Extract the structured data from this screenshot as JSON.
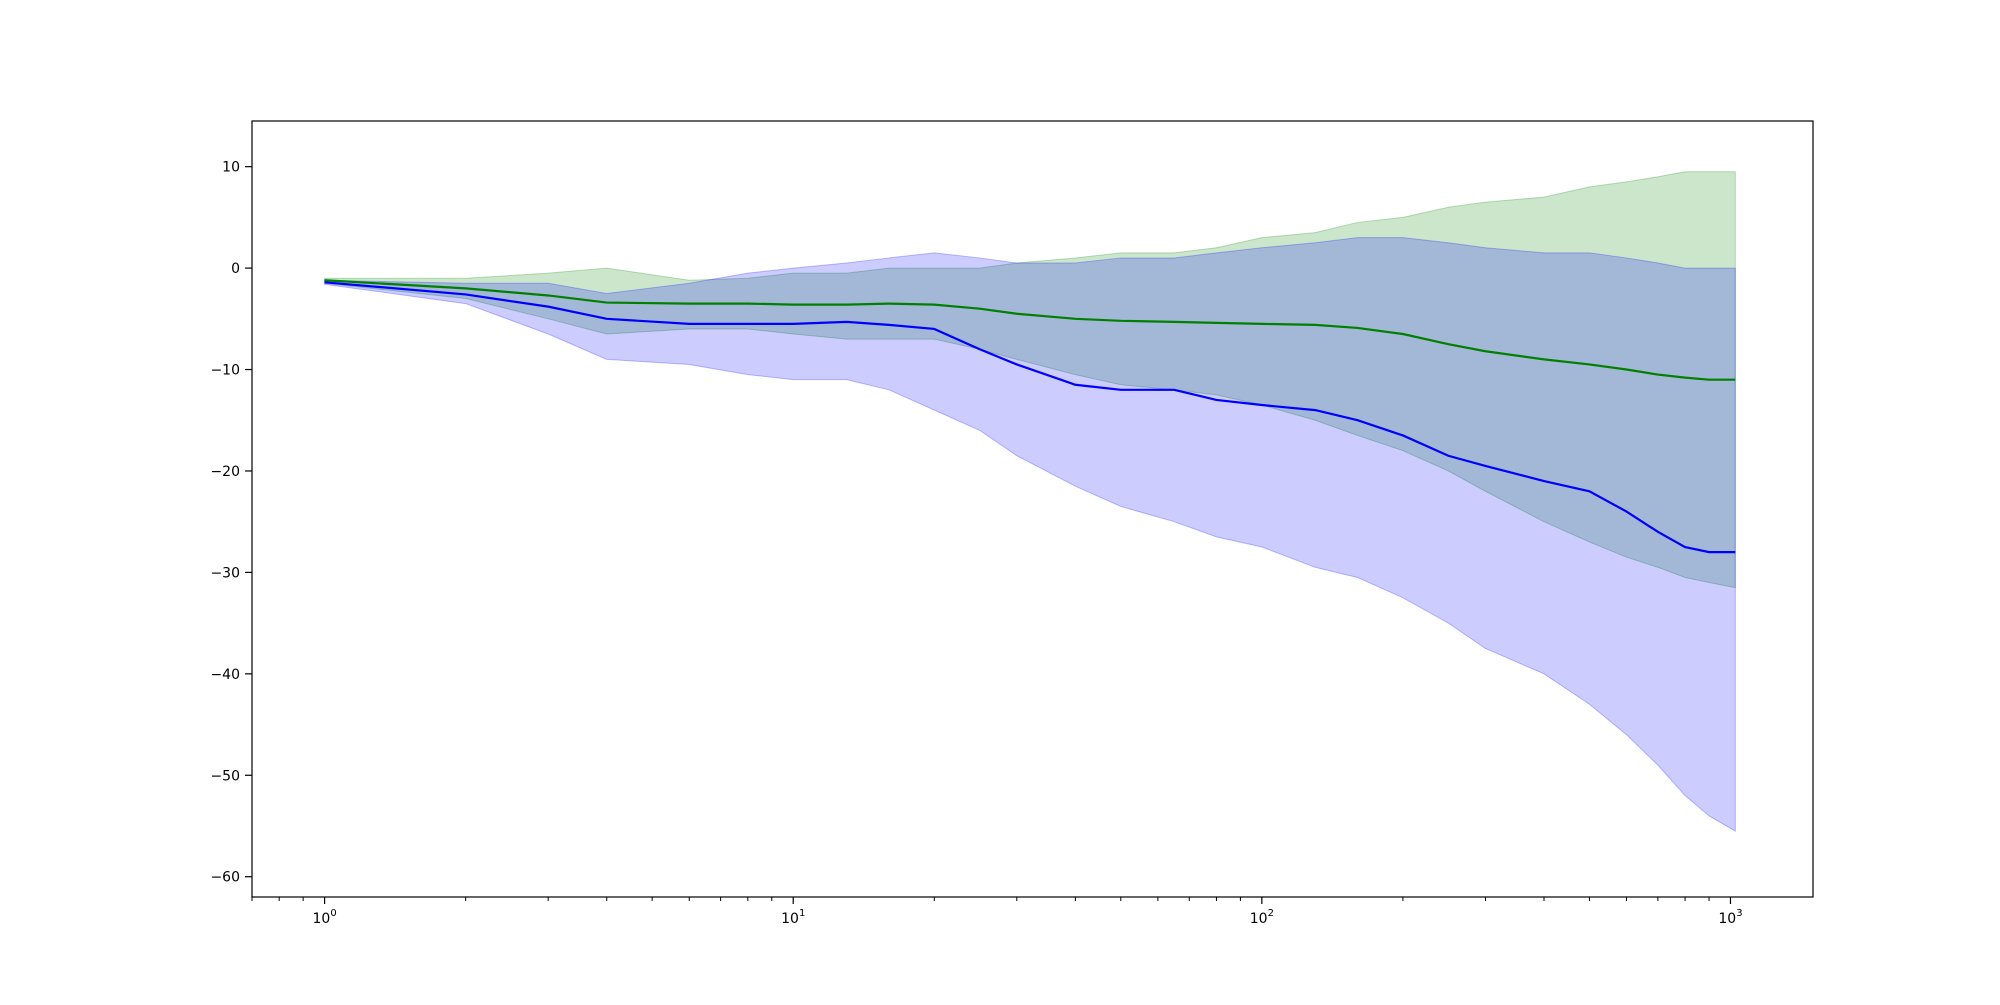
{
  "chart_data": {
    "type": "line",
    "title": "",
    "xlabel": "",
    "ylabel": "",
    "xscale": "log",
    "xlim": [
      0.7,
      1500
    ],
    "ylim": [
      -62,
      14.5
    ],
    "grid": false,
    "legend": "none",
    "x_ticks": [
      {
        "value": 1,
        "base": "10",
        "exp": "0"
      },
      {
        "value": 10,
        "base": "10",
        "exp": "1"
      },
      {
        "value": 100,
        "base": "10",
        "exp": "2"
      },
      {
        "value": 1000,
        "base": "10",
        "exp": "3"
      }
    ],
    "y_ticks": [
      {
        "value": 10,
        "label": "10"
      },
      {
        "value": 0,
        "label": "0"
      },
      {
        "value": -10,
        "label": "−10"
      },
      {
        "value": -20,
        "label": "−20"
      },
      {
        "value": -30,
        "label": "−30"
      },
      {
        "value": -40,
        "label": "−40"
      },
      {
        "value": -50,
        "label": "−50"
      },
      {
        "value": -60,
        "label": "−60"
      }
    ],
    "x": [
      1,
      2,
      3,
      4,
      6,
      8,
      10,
      13,
      16,
      20,
      25,
      30,
      40,
      50,
      65,
      80,
      100,
      130,
      160,
      200,
      250,
      300,
      400,
      500,
      600,
      700,
      800,
      900,
      1024
    ],
    "series": [
      {
        "color": "#008000",
        "band_color": "#008000",
        "band_opacity": 0.2,
        "mean": [
          -1.2,
          -2.0,
          -2.7,
          -3.4,
          -3.5,
          -3.5,
          -3.6,
          -3.6,
          -3.5,
          -3.6,
          -4.0,
          -4.5,
          -5.0,
          -5.2,
          -5.3,
          -5.4,
          -5.5,
          -5.6,
          -5.9,
          -6.5,
          -7.5,
          -8.2,
          -9.0,
          -9.5,
          -10.0,
          -10.5,
          -10.8,
          -11.0,
          -11.0
        ],
        "upper": [
          -1.0,
          -1.0,
          -0.5,
          0.0,
          -1.2,
          -1.0,
          -0.5,
          -0.5,
          0.0,
          0.0,
          0.0,
          0.5,
          1.0,
          1.5,
          1.5,
          2.0,
          3.0,
          3.5,
          4.5,
          5.0,
          6.0,
          6.5,
          7.0,
          8.0,
          8.5,
          9.0,
          9.5,
          9.5,
          9.5
        ],
        "lower": [
          -1.5,
          -3.0,
          -5.0,
          -6.5,
          -6.0,
          -6.0,
          -6.5,
          -7.0,
          -7.0,
          -7.0,
          -8.0,
          -9.0,
          -10.5,
          -11.5,
          -12.0,
          -12.5,
          -13.5,
          -15.0,
          -16.5,
          -18.0,
          -20.0,
          -22.0,
          -25.0,
          -27.0,
          -28.5,
          -29.5,
          -30.5,
          -31.0,
          -31.5
        ]
      },
      {
        "color": "#0000ff",
        "band_color": "#0000ff",
        "band_opacity": 0.2,
        "mean": [
          -1.4,
          -2.6,
          -3.8,
          -5.0,
          -5.5,
          -5.5,
          -5.5,
          -5.3,
          -5.6,
          -6.0,
          -8.0,
          -9.5,
          -11.5,
          -12.0,
          -12.0,
          -13.0,
          -13.5,
          -14.0,
          -15.0,
          -16.5,
          -18.5,
          -19.5,
          -21.0,
          -22.0,
          -24.0,
          -26.0,
          -27.5,
          -28.0,
          -28.0
        ],
        "upper": [
          -1.2,
          -1.5,
          -1.5,
          -2.5,
          -1.5,
          -0.5,
          0.0,
          0.5,
          1.0,
          1.5,
          1.0,
          0.5,
          0.5,
          1.0,
          1.0,
          1.5,
          2.0,
          2.5,
          3.0,
          3.0,
          2.5,
          2.0,
          1.5,
          1.5,
          1.0,
          0.5,
          0.0,
          0.0,
          0.0
        ],
        "lower": [
          -1.6,
          -3.5,
          -6.5,
          -9.0,
          -9.5,
          -10.5,
          -11.0,
          -11.0,
          -12.0,
          -14.0,
          -16.0,
          -18.5,
          -21.5,
          -23.5,
          -25.0,
          -26.5,
          -27.5,
          -29.5,
          -30.5,
          -32.5,
          -35.0,
          -37.5,
          -40.0,
          -43.0,
          -46.0,
          -49.0,
          -52.0,
          -54.0,
          -55.5
        ]
      }
    ]
  }
}
